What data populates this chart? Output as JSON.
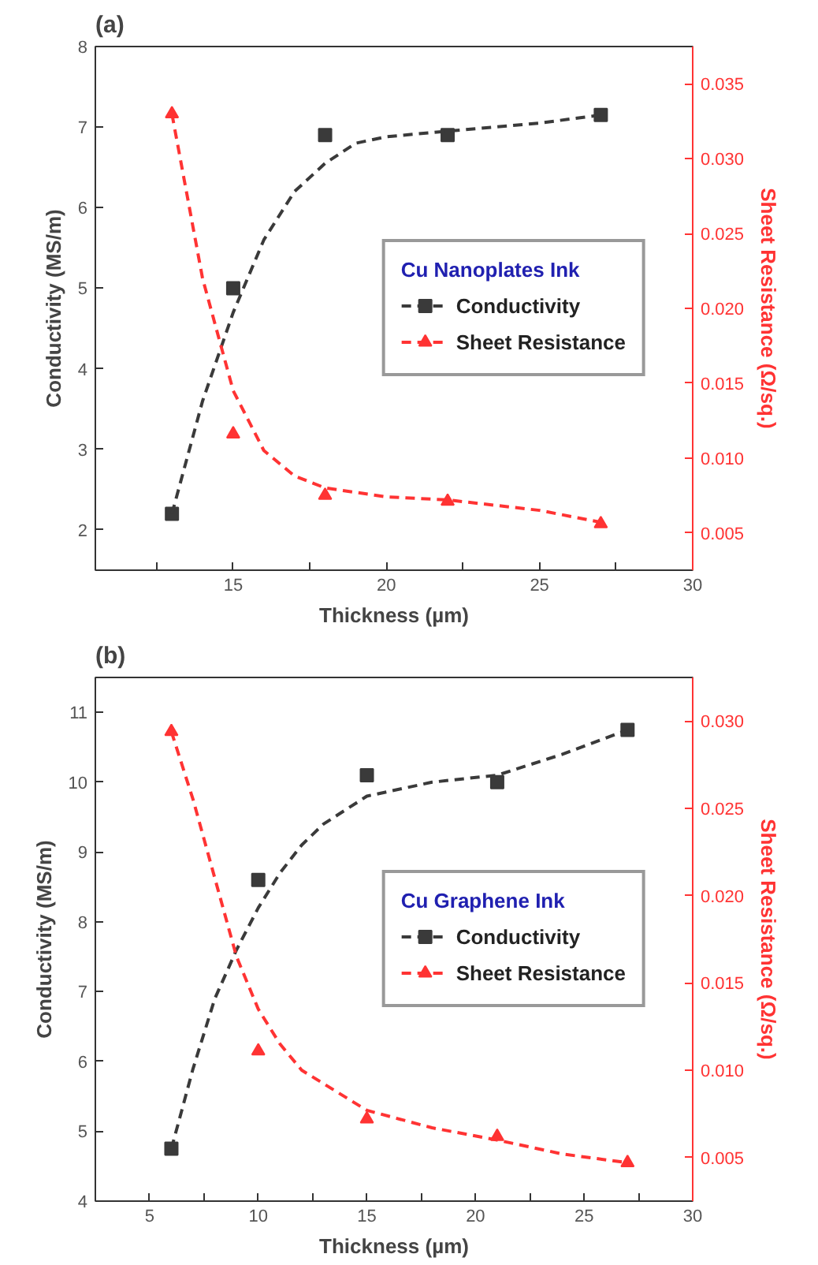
{
  "chart_data": [
    {
      "type": "scatter",
      "title": "(a)",
      "xlabel": "Thickness (µm)",
      "ylabel": "Conductivity (MS/m)",
      "y2label": "Sheet Resistance (Ω/sq.)",
      "legend_title": "Cu Nanoplates Ink",
      "legend": "right",
      "grid": false,
      "xlim": [
        10.5,
        30
      ],
      "xticks": [
        {
          "value": 12.5,
          "label": null
        },
        15,
        {
          "value": 17.5,
          "label": null
        },
        20,
        {
          "value": 22.5,
          "label": null
        },
        25,
        {
          "value": 27.5,
          "label": null
        },
        30
      ],
      "ylim": [
        1.5,
        8
      ],
      "yticks": [
        2,
        3,
        4,
        5,
        6,
        7,
        8
      ],
      "y2lim": [
        0.0025,
        0.0375
      ],
      "y2ticks": [
        {
          "value": 0.005,
          "label": "0.005"
        },
        {
          "value": 0.01,
          "label": "0.010"
        },
        {
          "value": 0.015,
          "label": "0.015"
        },
        {
          "value": 0.02,
          "label": "0.020"
        },
        {
          "value": 0.025,
          "label": "0.025"
        },
        {
          "value": 0.03,
          "label": "0.030"
        },
        {
          "value": 0.035,
          "label": "0.035"
        }
      ],
      "series": [
        {
          "name": "Conductivity",
          "color": "#3a3a3a",
          "marker": "square",
          "x": [
            13,
            15,
            18,
            22,
            27
          ],
          "values": [
            2.2,
            5.0,
            6.9,
            6.9,
            7.15
          ]
        },
        {
          "type": "line",
          "color": "#3a3a3a",
          "line_style": "dashed",
          "marker": "none",
          "x": [
            13,
            14,
            15,
            16,
            17,
            18,
            19,
            20,
            22,
            25,
            27
          ],
          "values": [
            2.2,
            3.6,
            4.7,
            5.6,
            6.2,
            6.55,
            6.8,
            6.88,
            6.95,
            7.05,
            7.15
          ]
        },
        {
          "name": "Sheet Resistance",
          "color": "#ff3333",
          "marker": "triangle",
          "axis": "y2",
          "x": [
            13,
            15,
            18,
            22,
            27
          ],
          "values": [
            0.033,
            0.0116,
            0.0075,
            0.0071,
            0.0056
          ]
        },
        {
          "type": "line",
          "color": "#ff3333",
          "line_style": "dashed",
          "marker": "none",
          "axis": "y2",
          "x": [
            13,
            14,
            15,
            16,
            17,
            18,
            20,
            22,
            25,
            27
          ],
          "values": [
            0.033,
            0.022,
            0.0145,
            0.0105,
            0.0088,
            0.008,
            0.0074,
            0.0072,
            0.0065,
            0.0057
          ]
        }
      ]
    },
    {
      "type": "scatter",
      "title": "(b)",
      "xlabel": "Thickness (µm)",
      "ylabel": "Conductivity (MS/m)",
      "y2label": "Sheet Resistance (Ω/sq.)",
      "legend_title": "Cu Graphene Ink",
      "legend": "right",
      "grid": false,
      "xlim": [
        2.5,
        30
      ],
      "xticks": [
        5,
        {
          "value": 7.5,
          "label": null
        },
        10,
        {
          "value": 12.5,
          "label": null
        },
        15,
        {
          "value": 17.5,
          "label": null
        },
        20,
        {
          "value": 22.5,
          "label": null
        },
        25,
        {
          "value": 27.5,
          "label": null
        },
        30
      ],
      "ylim": [
        4,
        11.5
      ],
      "yticks": [
        4,
        5,
        6,
        7,
        8,
        9,
        10,
        11
      ],
      "y2lim": [
        0.0025,
        0.0325
      ],
      "y2ticks": [
        {
          "value": 0.005,
          "label": "0.005"
        },
        {
          "value": 0.01,
          "label": "0.010"
        },
        {
          "value": 0.015,
          "label": "0.015"
        },
        {
          "value": 0.02,
          "label": "0.020"
        },
        {
          "value": 0.025,
          "label": "0.025"
        },
        {
          "value": 0.03,
          "label": "0.030"
        }
      ],
      "series": [
        {
          "name": "Conductivity",
          "color": "#3a3a3a",
          "marker": "square",
          "x": [
            6,
            10,
            15,
            21,
            27
          ],
          "values": [
            4.75,
            8.6,
            10.1,
            10.0,
            10.75
          ]
        },
        {
          "type": "line",
          "color": "#3a3a3a",
          "line_style": "dashed",
          "marker": "none",
          "x": [
            6,
            7,
            8,
            9,
            10,
            11,
            12,
            13,
            15,
            18,
            21,
            24,
            27
          ],
          "values": [
            4.75,
            5.9,
            6.9,
            7.6,
            8.2,
            8.7,
            9.1,
            9.4,
            9.8,
            10.0,
            10.1,
            10.4,
            10.75
          ]
        },
        {
          "name": "Sheet Resistance",
          "color": "#ff3333",
          "marker": "triangle",
          "axis": "y2",
          "x": [
            6,
            10,
            15,
            21,
            27
          ],
          "values": [
            0.0294,
            0.0111,
            0.0072,
            0.0062,
            0.0047
          ]
        },
        {
          "type": "line",
          "color": "#ff3333",
          "line_style": "dashed",
          "marker": "none",
          "axis": "y2",
          "x": [
            6,
            7,
            8,
            9,
            10,
            11,
            12,
            15,
            18,
            21,
            24,
            27
          ],
          "values": [
            0.0294,
            0.0255,
            0.021,
            0.0165,
            0.0135,
            0.0115,
            0.01,
            0.0077,
            0.0067,
            0.006,
            0.0052,
            0.0047
          ]
        }
      ]
    }
  ]
}
